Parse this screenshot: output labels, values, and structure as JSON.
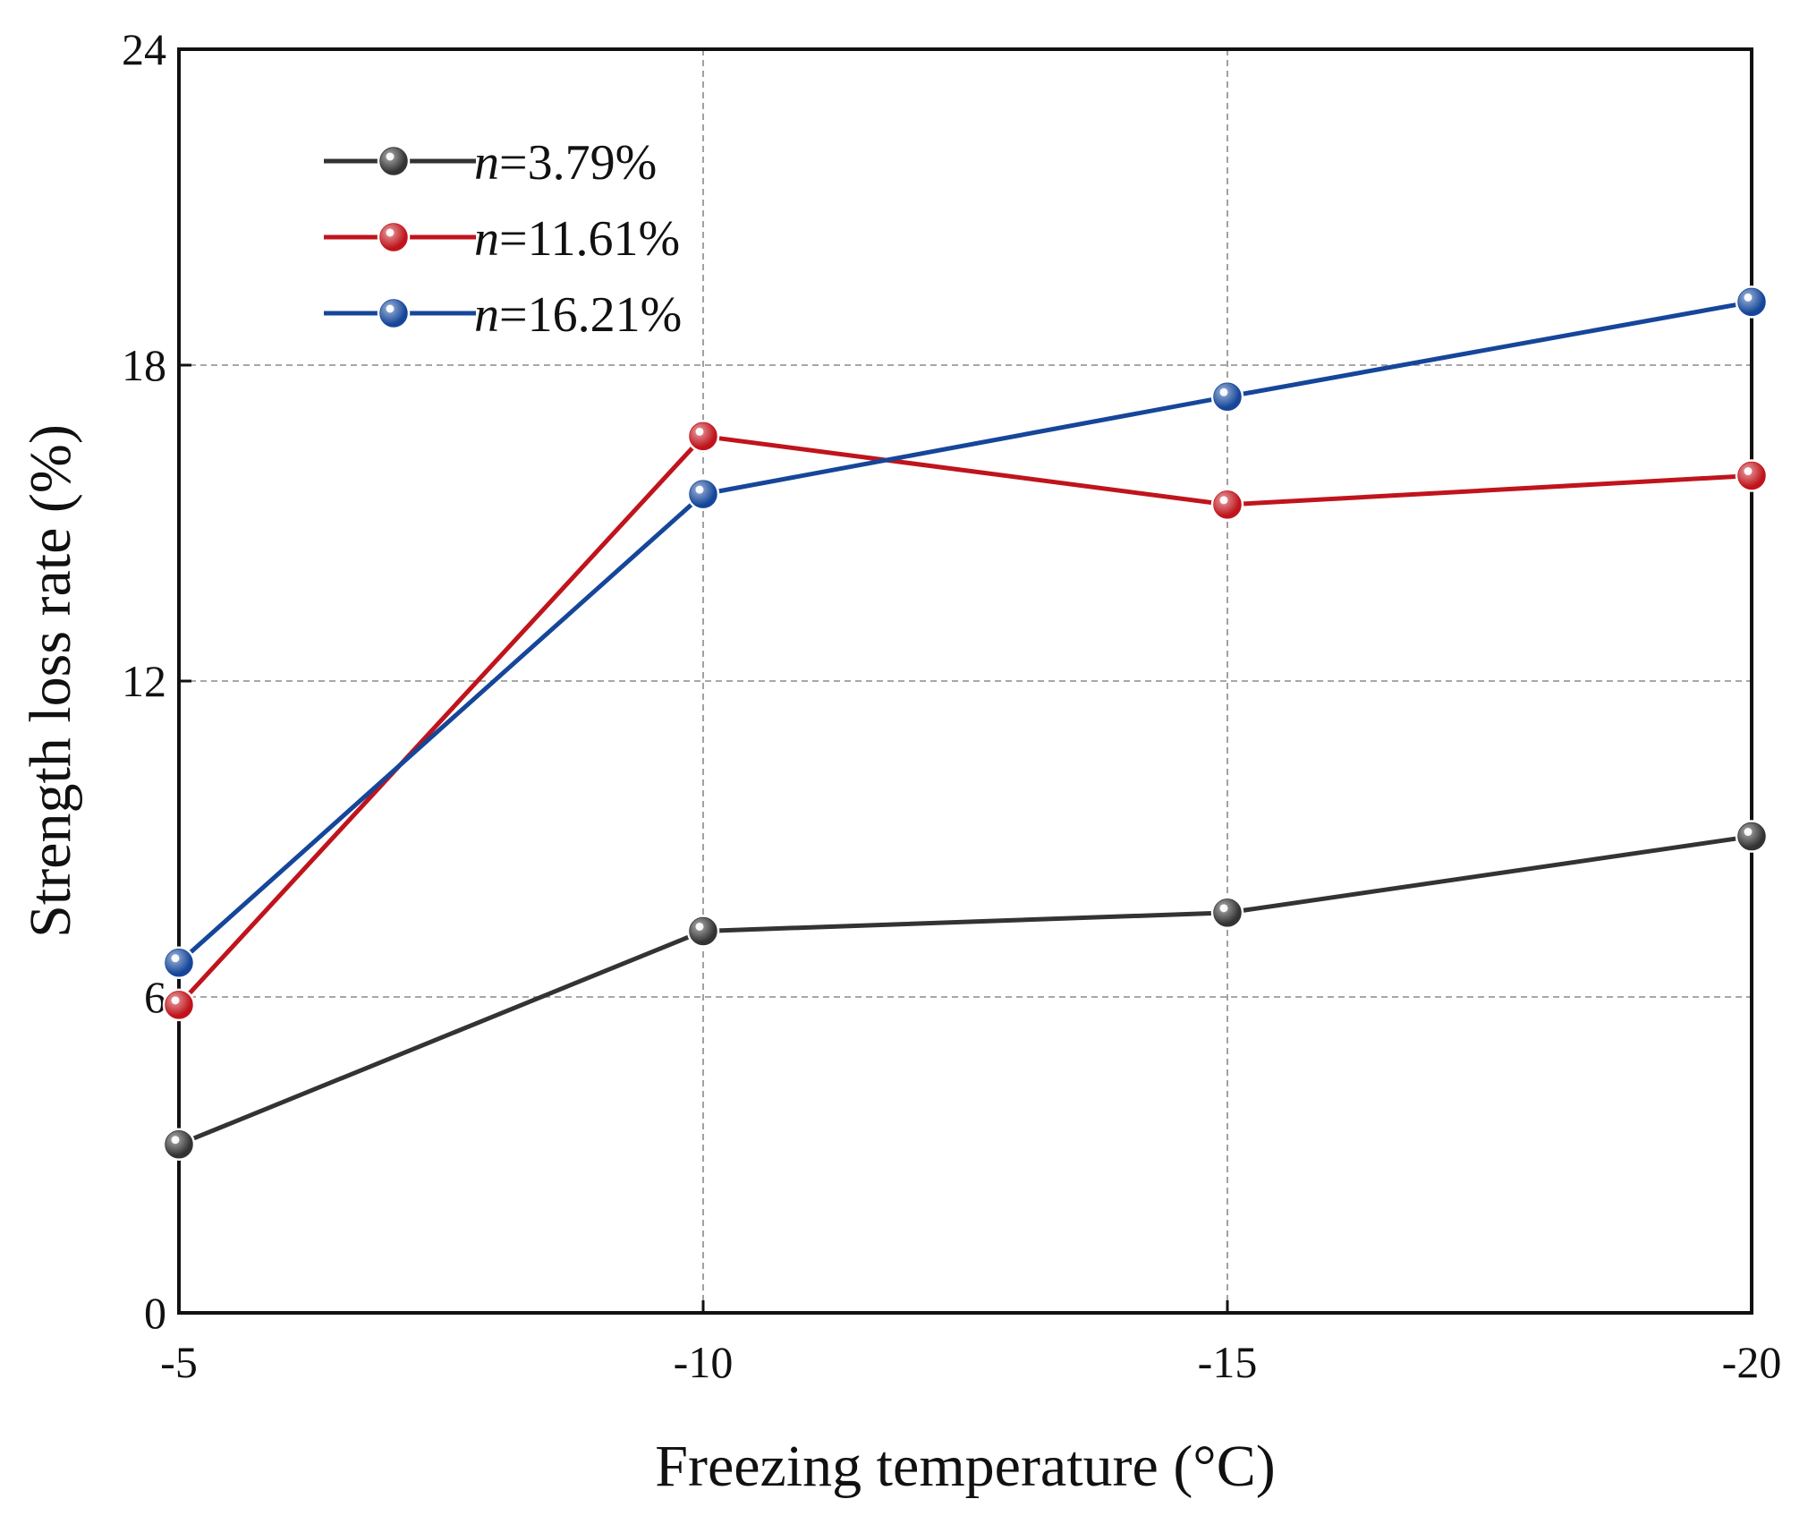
{
  "chart_data": {
    "type": "line",
    "xlabel": "Freezing temperature (°C)",
    "ylabel": "Strength loss rate (%)",
    "x": [
      -5,
      -10,
      -15,
      -20
    ],
    "x_tick_labels": [
      "-5",
      "-10",
      "-15",
      "-20"
    ],
    "y_ticks": [
      0,
      6,
      12,
      18,
      24
    ],
    "ylim": [
      0,
      24
    ],
    "xlim": [
      -5,
      -20
    ],
    "grid": true,
    "legend_position": "top-left",
    "series": [
      {
        "name": "n=3.79%",
        "name_var": "n",
        "name_value": "=3.79%",
        "color": "#333333",
        "values": [
          3.2,
          7.25,
          7.6,
          9.05
        ]
      },
      {
        "name": "n=11.61%",
        "name_var": "n",
        "name_value": "=11.61%",
        "color": "#c0141c",
        "values": [
          5.85,
          16.65,
          15.35,
          15.9
        ]
      },
      {
        "name": "n=16.21%",
        "name_var": "n",
        "name_value": "=16.21%",
        "color": "#15469a",
        "values": [
          6.65,
          15.55,
          17.4,
          19.2
        ]
      }
    ]
  }
}
